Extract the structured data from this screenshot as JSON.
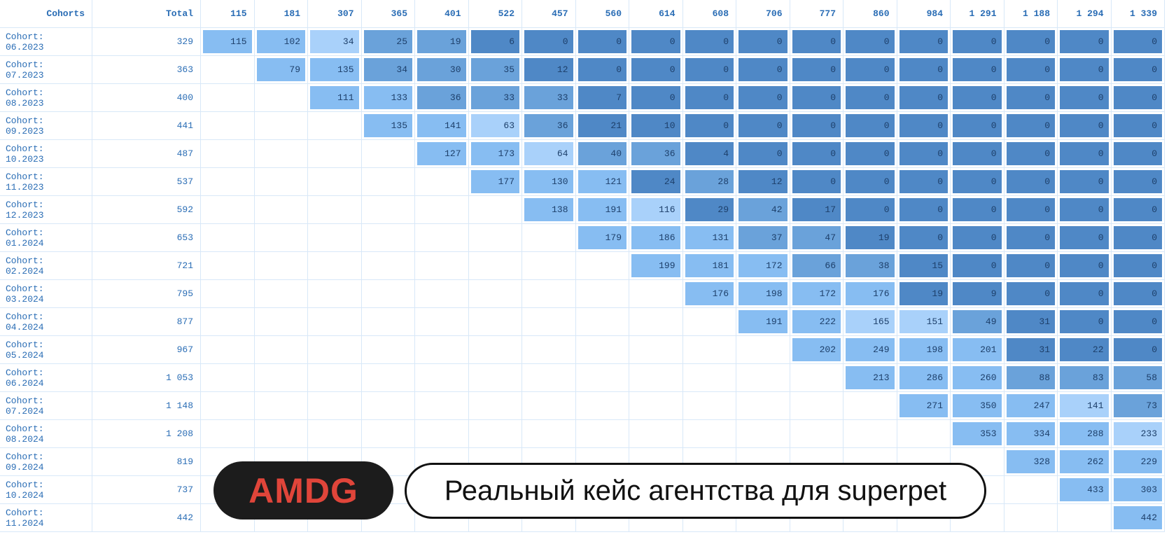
{
  "table": {
    "header": [
      "Cohorts",
      "Total",
      "115",
      "181",
      "307",
      "365",
      "401",
      "522",
      "457",
      "560",
      "614",
      "608",
      "706",
      "777",
      "860",
      "984",
      "1 291",
      "1 188",
      "1 294",
      "1 339"
    ],
    "colors": {
      "zero": "#4f88c6",
      "low": "#6aa2da",
      "mid": "#a9d1fa",
      "high": "#87bdf2"
    },
    "rows": [
      {
        "label": "Cohort: 06.2023",
        "total": "329",
        "cells": [
          115,
          102,
          34,
          25,
          19,
          6,
          0,
          0,
          0,
          0,
          0,
          0,
          0,
          0,
          0,
          0,
          0,
          0
        ]
      },
      {
        "label": "Cohort: 07.2023",
        "total": "363",
        "cells": [
          null,
          79,
          135,
          34,
          30,
          35,
          12,
          0,
          0,
          0,
          0,
          0,
          0,
          0,
          0,
          0,
          0,
          0
        ]
      },
      {
        "label": "Cohort: 08.2023",
        "total": "400",
        "cells": [
          null,
          null,
          111,
          133,
          36,
          33,
          33,
          7,
          0,
          0,
          0,
          0,
          0,
          0,
          0,
          0,
          0,
          0
        ]
      },
      {
        "label": "Cohort: 09.2023",
        "total": "441",
        "cells": [
          null,
          null,
          null,
          135,
          141,
          63,
          36,
          21,
          10,
          0,
          0,
          0,
          0,
          0,
          0,
          0,
          0,
          0
        ]
      },
      {
        "label": "Cohort: 10.2023",
        "total": "487",
        "cells": [
          null,
          null,
          null,
          null,
          127,
          173,
          64,
          40,
          36,
          4,
          0,
          0,
          0,
          0,
          0,
          0,
          0,
          0
        ]
      },
      {
        "label": "Cohort: 11.2023",
        "total": "537",
        "cells": [
          null,
          null,
          null,
          null,
          null,
          177,
          130,
          121,
          24,
          28,
          12,
          0,
          0,
          0,
          0,
          0,
          0,
          0
        ]
      },
      {
        "label": "Cohort: 12.2023",
        "total": "592",
        "cells": [
          null,
          null,
          null,
          null,
          null,
          null,
          138,
          191,
          116,
          29,
          42,
          17,
          0,
          0,
          0,
          0,
          0,
          0
        ]
      },
      {
        "label": "Cohort: 01.2024",
        "total": "653",
        "cells": [
          null,
          null,
          null,
          null,
          null,
          null,
          null,
          179,
          186,
          131,
          37,
          47,
          19,
          0,
          0,
          0,
          0,
          0
        ]
      },
      {
        "label": "Cohort: 02.2024",
        "total": "721",
        "cells": [
          null,
          null,
          null,
          null,
          null,
          null,
          null,
          null,
          199,
          181,
          172,
          66,
          38,
          15,
          0,
          0,
          0,
          0
        ]
      },
      {
        "label": "Cohort: 03.2024",
        "total": "795",
        "cells": [
          null,
          null,
          null,
          null,
          null,
          null,
          null,
          null,
          null,
          176,
          198,
          172,
          176,
          19,
          9,
          0,
          0,
          0
        ]
      },
      {
        "label": "Cohort: 04.2024",
        "total": "877",
        "cells": [
          null,
          null,
          null,
          null,
          null,
          null,
          null,
          null,
          null,
          null,
          191,
          222,
          165,
          151,
          49,
          31,
          0,
          0
        ]
      },
      {
        "label": "Cohort: 05.2024",
        "total": "967",
        "cells": [
          null,
          null,
          null,
          null,
          null,
          null,
          null,
          null,
          null,
          null,
          null,
          202,
          249,
          198,
          201,
          31,
          22,
          0
        ]
      },
      {
        "label": "Cohort: 06.2024",
        "total": "1 053",
        "cells": [
          null,
          null,
          null,
          null,
          null,
          null,
          null,
          null,
          null,
          null,
          null,
          null,
          213,
          286,
          260,
          88,
          83,
          58
        ]
      },
      {
        "label": "Cohort: 07.2024",
        "total": "1 148",
        "cells": [
          null,
          null,
          null,
          null,
          null,
          null,
          null,
          null,
          null,
          null,
          null,
          null,
          null,
          271,
          350,
          247,
          141,
          73
        ]
      },
      {
        "label": "Cohort: 08.2024",
        "total": "1 208",
        "cells": [
          null,
          null,
          null,
          null,
          null,
          null,
          null,
          null,
          null,
          null,
          null,
          null,
          null,
          null,
          353,
          334,
          288,
          233
        ]
      },
      {
        "label": "Cohort: 09.2024",
        "total": "819",
        "cells": [
          null,
          null,
          null,
          null,
          null,
          null,
          null,
          null,
          null,
          null,
          null,
          null,
          null,
          null,
          null,
          328,
          262,
          229
        ]
      },
      {
        "label": "Cohort: 10.2024",
        "total": "737",
        "cells": [
          null,
          null,
          null,
          null,
          null,
          null,
          null,
          null,
          null,
          null,
          null,
          null,
          null,
          null,
          null,
          null,
          433,
          303
        ]
      },
      {
        "label": "Cohort: 11.2024",
        "total": "442",
        "cells": [
          null,
          null,
          null,
          null,
          null,
          null,
          null,
          null,
          null,
          null,
          null,
          null,
          null,
          null,
          null,
          null,
          null,
          442
        ]
      }
    ]
  },
  "overlay": {
    "logo": "AMDG",
    "caption": "Реальный кейс агентства для superpet"
  }
}
